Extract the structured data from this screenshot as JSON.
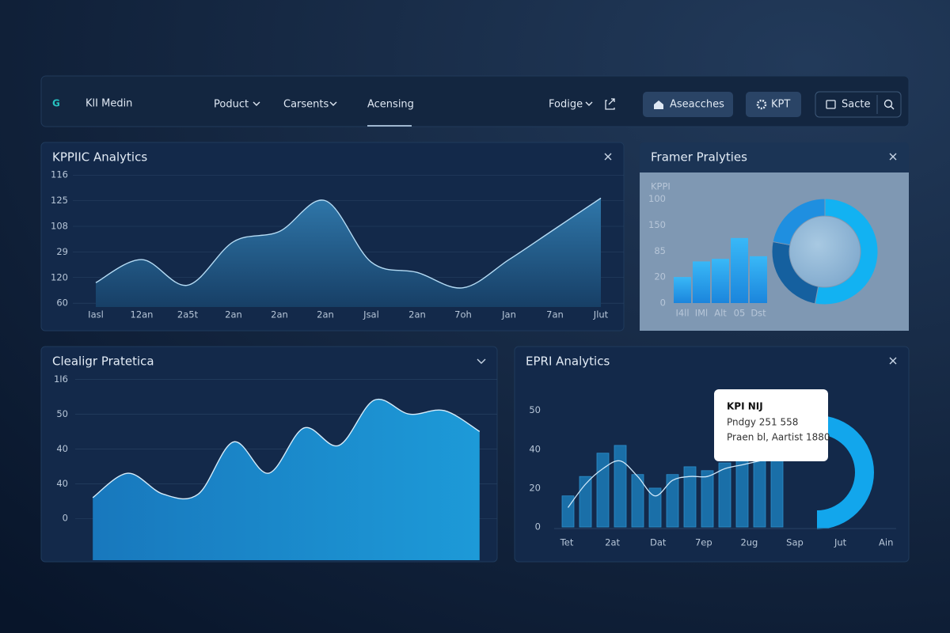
{
  "nav": {
    "logo": "G",
    "brand": "KlI Medin",
    "items": [
      "Poduct",
      "Carsents",
      "Acensing",
      "Fodige"
    ],
    "buttons": [
      "Aseacches",
      "KPT",
      "Sacte"
    ]
  },
  "panels": [
    {
      "title": "KPPIIC Analytics",
      "chart": {
        "type": "area",
        "categories": [
          "Iasl",
          "12an",
          "2a5t",
          "2an",
          "2an",
          "2an",
          "Jsal",
          "2an",
          "7oh",
          "Jan",
          "7an",
          "Jlut"
        ],
        "values": [
          0.8,
          1.7,
          0.7,
          2.4,
          2.8,
          4.0,
          1.6,
          1.2,
          0.6,
          1.7,
          2.9,
          4.1
        ],
        "ylim": [
          -0.15,
          5.1
        ],
        "yticks": [
          {
            "value": 0,
            "label": "60"
          },
          {
            "value": 1,
            "label": "120"
          },
          {
            "value": 2,
            "label": "29"
          },
          {
            "value": 3,
            "label": "108"
          },
          {
            "value": 4,
            "label": "125"
          },
          {
            "value": 5,
            "label": "116"
          }
        ],
        "grid": true,
        "color": "#2a6fa0"
      }
    },
    {
      "title": "Framer Pralyties",
      "chart": {
        "type": "bar",
        "axis_label": "KPPI",
        "categories": [
          "I4ll",
          "IMl",
          "Alt",
          "05",
          "Dst"
        ],
        "values": [
          1.0,
          1.6,
          1.7,
          2.5,
          1.8
        ],
        "ylim": [
          0,
          4.35
        ],
        "yticks": [
          {
            "value": 0,
            "label": "0"
          },
          {
            "value": 1,
            "label": "20"
          },
          {
            "value": 2,
            "label": "85"
          },
          {
            "value": 3,
            "label": "150"
          },
          {
            "value": 4,
            "label": "100"
          }
        ],
        "color": "#1ea0ee"
      },
      "donut": {
        "type": "pie",
        "values": [
          53,
          25,
          22
        ],
        "colors": [
          "#12b2f2",
          "#15609f",
          "#1f8fe0"
        ]
      }
    },
    {
      "title": "Clealigr Pratetica",
      "chart": {
        "type": "area",
        "values": [
          0.6,
          1.3,
          0.7,
          0.7,
          2.2,
          1.3,
          2.6,
          2.1,
          3.4,
          3.0,
          3.1,
          2.5
        ],
        "ylim": [
          -1.2,
          4.1
        ],
        "yticks": [
          {
            "value": 0,
            "label": "0"
          },
          {
            "value": 1,
            "label": "40"
          },
          {
            "value": 2,
            "label": "40"
          },
          {
            "value": 3,
            "label": "50"
          },
          {
            "value": 4,
            "label": "1I6"
          }
        ],
        "grid": true,
        "color": "#1a88cc"
      }
    },
    {
      "title": "EPRI Analytics",
      "chart": {
        "type": "bar",
        "xlabels": [
          "Tet",
          "2at",
          "Dat",
          "7ep",
          "2ug",
          "Sap",
          "Jut",
          "Ain"
        ],
        "values": [
          0.8,
          1.3,
          1.9,
          2.1,
          1.35,
          1.0,
          1.35,
          1.55,
          1.45,
          1.65,
          1.75,
          1.85,
          1.75
        ],
        "line": [
          0.5,
          1.1,
          1.5,
          1.7,
          1.3,
          0.8,
          1.2,
          1.3,
          1.3,
          1.5,
          1.6,
          1.7,
          1.8
        ],
        "ylim": [
          0,
          3.3
        ],
        "yticks": [
          {
            "value": 0,
            "label": "0"
          },
          {
            "value": 1,
            "label": "20"
          },
          {
            "value": 2,
            "label": "40"
          },
          {
            "value": 3,
            "label": "50"
          }
        ],
        "color": "#1a6fa8"
      },
      "tooltip": {
        "title": "KPI NIJ",
        "lines": [
          "Pndgy 251 558",
          "Praen bl, Aartist 1880"
        ]
      }
    }
  ]
}
